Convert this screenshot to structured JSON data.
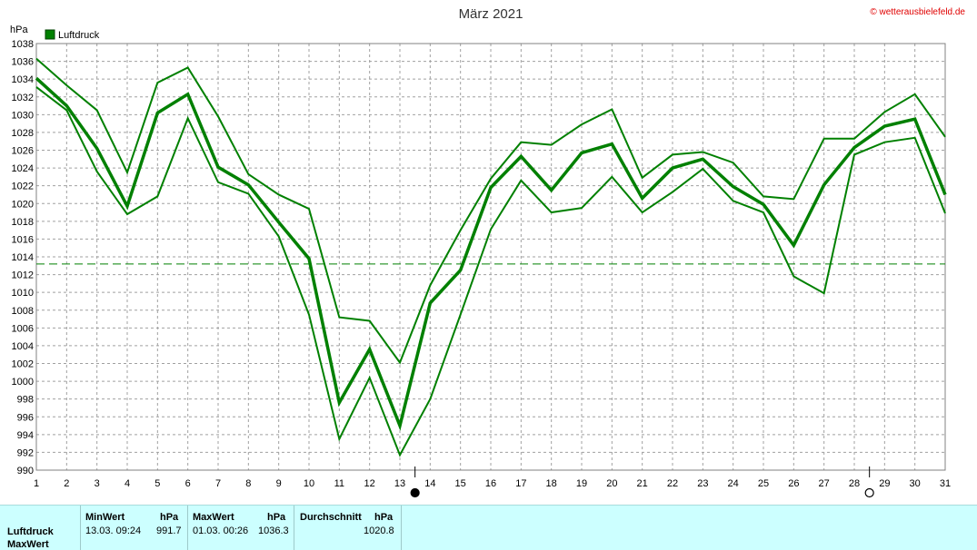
{
  "chart_data": {
    "type": "line",
    "title": "März 2021",
    "credit": "© wetterausbielefeld.de",
    "ylabel": "hPa",
    "xlabel": "",
    "legend": {
      "position": "top-left",
      "entries": [
        {
          "name": "Luftdruck",
          "color": "#008000"
        }
      ]
    },
    "grid": true,
    "xlim": [
      1,
      31
    ],
    "ylim": [
      990,
      1038
    ],
    "x": [
      1,
      2,
      3,
      4,
      5,
      6,
      7,
      8,
      9,
      10,
      11,
      12,
      13,
      14,
      15,
      16,
      17,
      18,
      19,
      20,
      21,
      22,
      23,
      24,
      25,
      26,
      27,
      28,
      29,
      30,
      31
    ],
    "x_ticks": [
      "1",
      "2",
      "3",
      "4",
      "5",
      "6",
      "7",
      "8",
      "9",
      "10",
      "11",
      "12",
      "13",
      "14",
      "15",
      "16",
      "17",
      "18",
      "19",
      "20",
      "21",
      "22",
      "23",
      "24",
      "25",
      "26",
      "27",
      "28",
      "29",
      "30",
      "31"
    ],
    "y_ticks": [
      "990",
      "992",
      "994",
      "996",
      "998",
      "1000",
      "1002",
      "1004",
      "1006",
      "1008",
      "1010",
      "1012",
      "1014",
      "1016",
      "1018",
      "1020",
      "1022",
      "1024",
      "1026",
      "1028",
      "1030",
      "1032",
      "1034",
      "1036",
      "1038"
    ],
    "series": [
      {
        "name": "Luftdruck",
        "role": "max",
        "color": "#008000",
        "values": [
          1036.3,
          1033.3,
          1030.5,
          1023.5,
          1033.6,
          1035.3,
          1029.8,
          1023.3,
          1021.0,
          1019.4,
          1007.2,
          1006.8,
          1002.1,
          1010.8,
          1017.0,
          1022.8,
          1026.9,
          1026.6,
          1028.9,
          1030.6,
          1022.9,
          1025.5,
          1025.8,
          1024.6,
          1020.8,
          1020.5,
          1027.3,
          1027.3,
          1030.3,
          1032.3,
          1027.5
        ]
      },
      {
        "name": "Luftdruck",
        "role": "avg",
        "color": "#008000",
        "values": [
          1034.1,
          1031.0,
          1026.2,
          1019.7,
          1030.2,
          1032.3,
          1024.1,
          1022.1,
          1017.9,
          1013.8,
          997.6,
          1003.6,
          995.0,
          1008.8,
          1012.5,
          1021.8,
          1025.3,
          1021.5,
          1025.7,
          1026.7,
          1020.6,
          1024.0,
          1025.0,
          1021.9,
          1019.9,
          1015.3,
          1022.1,
          1026.3,
          1028.7,
          1029.5,
          1021.0
        ]
      },
      {
        "name": "Luftdruck",
        "role": "min",
        "color": "#008000",
        "values": [
          1033.1,
          1030.5,
          1023.6,
          1018.8,
          1020.8,
          1029.6,
          1022.4,
          1021.1,
          1016.3,
          1007.5,
          993.5,
          1000.4,
          991.7,
          998.0,
          1007.5,
          1017.1,
          1022.6,
          1019.0,
          1019.5,
          1023.0,
          1019.0,
          1021.3,
          1023.9,
          1020.3,
          1019.0,
          1011.8,
          1009.9,
          1025.5,
          1026.9,
          1027.4,
          1018.9
        ]
      }
    ],
    "reference_line": {
      "value": 1013.2,
      "style": "dashed",
      "color": "#008000"
    },
    "moon_markers": [
      {
        "x": 13.5,
        "phase": "new"
      },
      {
        "x": 28.5,
        "phase": "full"
      }
    ]
  },
  "stats": {
    "header": {
      "min_label": "MinWert",
      "min_unit": "hPa",
      "max_label": "MaxWert",
      "max_unit": "hPa",
      "avg_label": "Durchschnitt",
      "avg_unit": "hPa"
    },
    "row": {
      "label": "Luftdruck",
      "min_time": "13.03.  09:24",
      "min_value": "991.7",
      "max_time": "01.03.  00:26",
      "max_value": "1036.3",
      "avg_value": "1020.8"
    },
    "row2_label": "MaxWert"
  }
}
